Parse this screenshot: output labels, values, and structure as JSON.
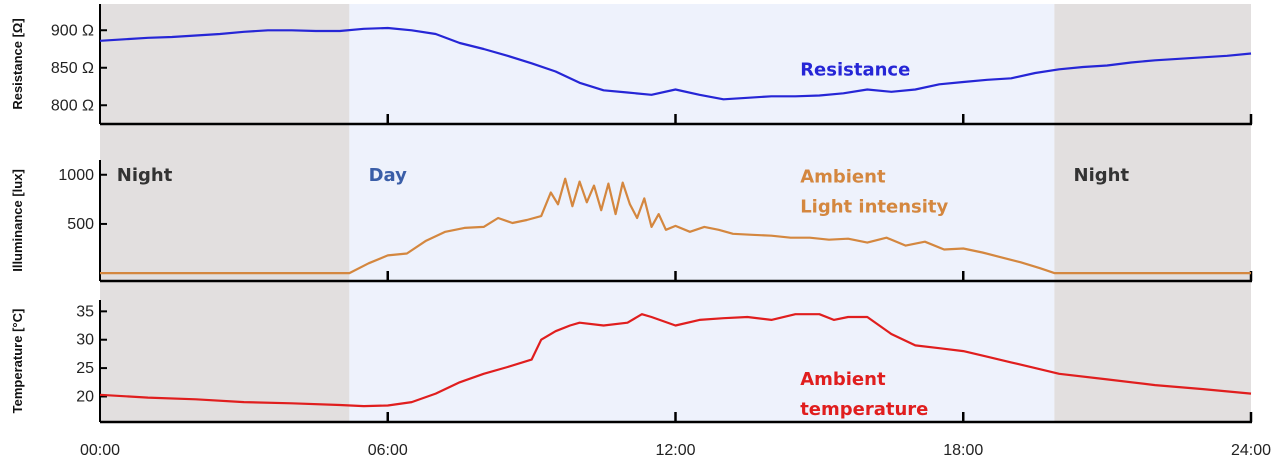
{
  "chart_data": {
    "type": "line",
    "x_axis": {
      "range_hours": [
        0,
        24
      ],
      "ticks": [
        {
          "hour": 0,
          "label": "00:00"
        },
        {
          "hour": 6,
          "label": "06:00"
        },
        {
          "hour": 12,
          "label": "12:00"
        },
        {
          "hour": 18,
          "label": "18:00"
        },
        {
          "hour": 24,
          "label": "24:00"
        }
      ]
    },
    "background_bands": [
      {
        "from_hour": 0,
        "to_hour": 5.2,
        "type": "night",
        "color": "#e2dfdf"
      },
      {
        "from_hour": 5.2,
        "to_hour": 19.9,
        "type": "day",
        "color": "#eef2fc"
      },
      {
        "from_hour": 19.9,
        "to_hour": 24,
        "type": "night",
        "color": "#e2dfdf"
      }
    ],
    "annotations": [
      {
        "text": "Night",
        "panel": 1,
        "hour": 0.35,
        "y": 935,
        "color": "#333333"
      },
      {
        "text": "Day",
        "panel": 1,
        "hour": 5.6,
        "y": 935,
        "color": "#3a5ea8"
      },
      {
        "text": "Night",
        "panel": 1,
        "hour": 20.3,
        "y": 935,
        "color": "#333333"
      }
    ],
    "panels": [
      {
        "ylabel": "Resistance [Ω]",
        "ylim": [
          775,
          935
        ],
        "yticks": [
          {
            "value": 800,
            "label": "800 Ω"
          },
          {
            "value": 850,
            "label": "850 Ω"
          },
          {
            "value": 900,
            "label": "900 Ω"
          }
        ],
        "series": [
          {
            "name": "Resistance",
            "color": "#2626d6",
            "legend_lines": [
              "Resistance"
            ],
            "legend_hour": 14.6,
            "legend_value": 840,
            "x": [
              0,
              0.5,
              1,
              1.5,
              2,
              2.5,
              3,
              3.5,
              4,
              4.5,
              5,
              5.5,
              6,
              6.5,
              7,
              7.5,
              8,
              8.5,
              9,
              9.5,
              10,
              10.5,
              11,
              11.5,
              12,
              12.5,
              13,
              13.5,
              14,
              14.5,
              15,
              15.5,
              16,
              16.5,
              17,
              17.5,
              18,
              18.5,
              19,
              19.5,
              20,
              20.5,
              21,
              21.5,
              22,
              22.5,
              23,
              23.5,
              24
            ],
            "y": [
              886,
              888,
              890,
              891,
              893,
              895,
              898,
              900,
              900,
              899,
              899,
              902,
              903,
              900,
              895,
              883,
              875,
              866,
              856,
              845,
              830,
              820,
              817,
              814,
              821,
              814,
              808,
              810,
              812,
              812,
              813,
              816,
              821,
              818,
              821,
              828,
              831,
              834,
              836,
              843,
              848,
              851,
              853,
              857,
              860,
              862,
              864,
              866,
              869
            ]
          }
        ]
      },
      {
        "ylabel": "Illuminance  [lux]",
        "ylim": [
          -80,
          1150
        ],
        "yticks": [
          {
            "value": 500,
            "label": "500"
          },
          {
            "value": 1000,
            "label": "1000"
          }
        ],
        "series": [
          {
            "name": "Ambient Light intensity",
            "color": "#d4873f",
            "legend_lines": [
              "Ambient",
              "Light intensity"
            ],
            "legend_hour": 14.6,
            "legend_value": 920,
            "x": [
              0,
              5.2,
              5.6,
              6,
              6.4,
              6.8,
              7.2,
              7.6,
              8,
              8.3,
              8.6,
              8.9,
              9.2,
              9.4,
              9.55,
              9.7,
              9.85,
              10,
              10.15,
              10.3,
              10.45,
              10.6,
              10.75,
              10.9,
              11.05,
              11.2,
              11.35,
              11.5,
              11.65,
              11.8,
              12,
              12.3,
              12.6,
              12.9,
              13.2,
              13.6,
              14,
              14.4,
              14.8,
              15.2,
              15.6,
              16,
              16.4,
              16.8,
              17.2,
              17.6,
              18,
              18.4,
              18.8,
              19.2,
              19.6,
              19.9,
              20.2,
              24
            ],
            "y": [
              0,
              0,
              100,
              180,
              200,
              330,
              420,
              460,
              470,
              560,
              510,
              540,
              580,
              820,
              700,
              960,
              680,
              930,
              720,
              890,
              640,
              910,
              600,
              920,
              700,
              560,
              760,
              470,
              600,
              440,
              480,
              420,
              470,
              440,
              400,
              390,
              380,
              360,
              360,
              340,
              350,
              310,
              360,
              280,
              320,
              240,
              250,
              210,
              160,
              110,
              50,
              0,
              0,
              0
            ]
          }
        ]
      },
      {
        "ylabel": "Temperature [°C]",
        "ylim": [
          15.5,
          37
        ],
        "yticks": [
          {
            "value": 20,
            "label": "20"
          },
          {
            "value": 25,
            "label": "25"
          },
          {
            "value": 30,
            "label": "30"
          },
          {
            "value": 35,
            "label": "35"
          }
        ],
        "series": [
          {
            "name": "Ambient temperature",
            "color": "#e01e1e",
            "legend_lines": [
              "Ambient",
              "temperature"
            ],
            "legend_hour": 14.6,
            "legend_value": 22,
            "x": [
              0,
              1,
              2,
              3,
              4,
              5,
              5.5,
              6,
              6.5,
              7,
              7.5,
              8,
              8.5,
              9,
              9.2,
              9.5,
              9.8,
              10,
              10.5,
              11,
              11.3,
              11.5,
              12,
              12.5,
              13,
              13.5,
              14,
              14.5,
              15,
              15.3,
              15.6,
              16,
              16.5,
              17,
              17.5,
              18,
              18.5,
              19,
              19.5,
              20,
              21,
              22,
              23,
              24
            ],
            "y": [
              20.3,
              19.8,
              19.5,
              19.0,
              18.8,
              18.5,
              18.3,
              18.4,
              19.0,
              20.5,
              22.5,
              24.0,
              25.2,
              26.5,
              30.0,
              31.5,
              32.5,
              33.0,
              32.5,
              33.0,
              34.5,
              34.0,
              32.5,
              33.5,
              33.8,
              34.0,
              33.5,
              34.5,
              34.5,
              33.5,
              34.0,
              34.0,
              31.0,
              29.0,
              28.5,
              28.0,
              27.0,
              26.0,
              25.0,
              24.0,
              23.0,
              22.0,
              21.3,
              20.5
            ]
          }
        ]
      }
    ]
  }
}
